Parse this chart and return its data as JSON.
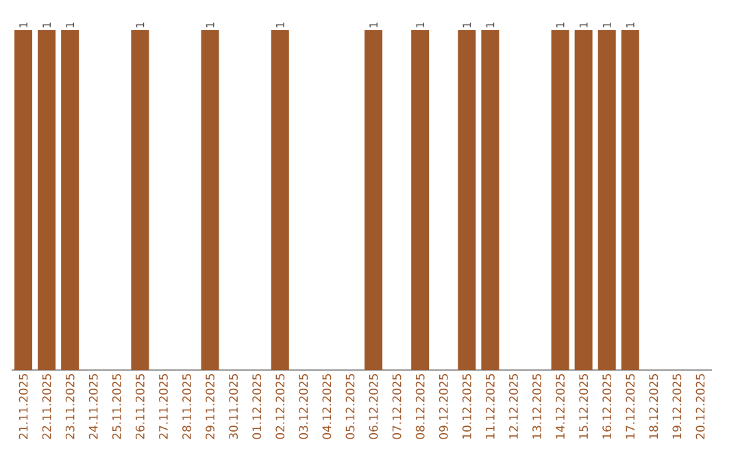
{
  "chart_data": {
    "type": "bar",
    "categories": [
      "21.11.2025",
      "22.11.2025",
      "23.11.2025",
      "24.11.2025",
      "25.11.2025",
      "26.11.2025",
      "27.11.2025",
      "28.11.2025",
      "29.11.2025",
      "30.11.2025",
      "01.12.2025",
      "02.12.2025",
      "03.12.2025",
      "04.12.2025",
      "05.12.2025",
      "06.12.2025",
      "07.12.2025",
      "08.12.2025",
      "09.12.2025",
      "10.12.2025",
      "11.12.2025",
      "12.12.2025",
      "13.12.2025",
      "14.12.2025",
      "15.12.2025",
      "16.12.2025",
      "17.12.2025",
      "18.12.2025",
      "19.12.2025",
      "20.12.2025"
    ],
    "values": [
      1,
      1,
      1,
      0,
      0,
      1,
      0,
      0,
      1,
      0,
      0,
      1,
      0,
      0,
      0,
      1,
      0,
      1,
      0,
      1,
      1,
      0,
      0,
      1,
      1,
      1,
      1,
      0,
      0,
      0
    ],
    "value_labels": [
      "1",
      "1",
      "1",
      null,
      null,
      "1",
      null,
      null,
      "1",
      null,
      null,
      "1",
      null,
      null,
      null,
      "1",
      null,
      "1",
      null,
      "1",
      "1",
      null,
      null,
      "1",
      "1",
      "1",
      "1",
      null,
      null,
      null
    ],
    "color": "#a0592a",
    "tick_labels": "x"
  }
}
